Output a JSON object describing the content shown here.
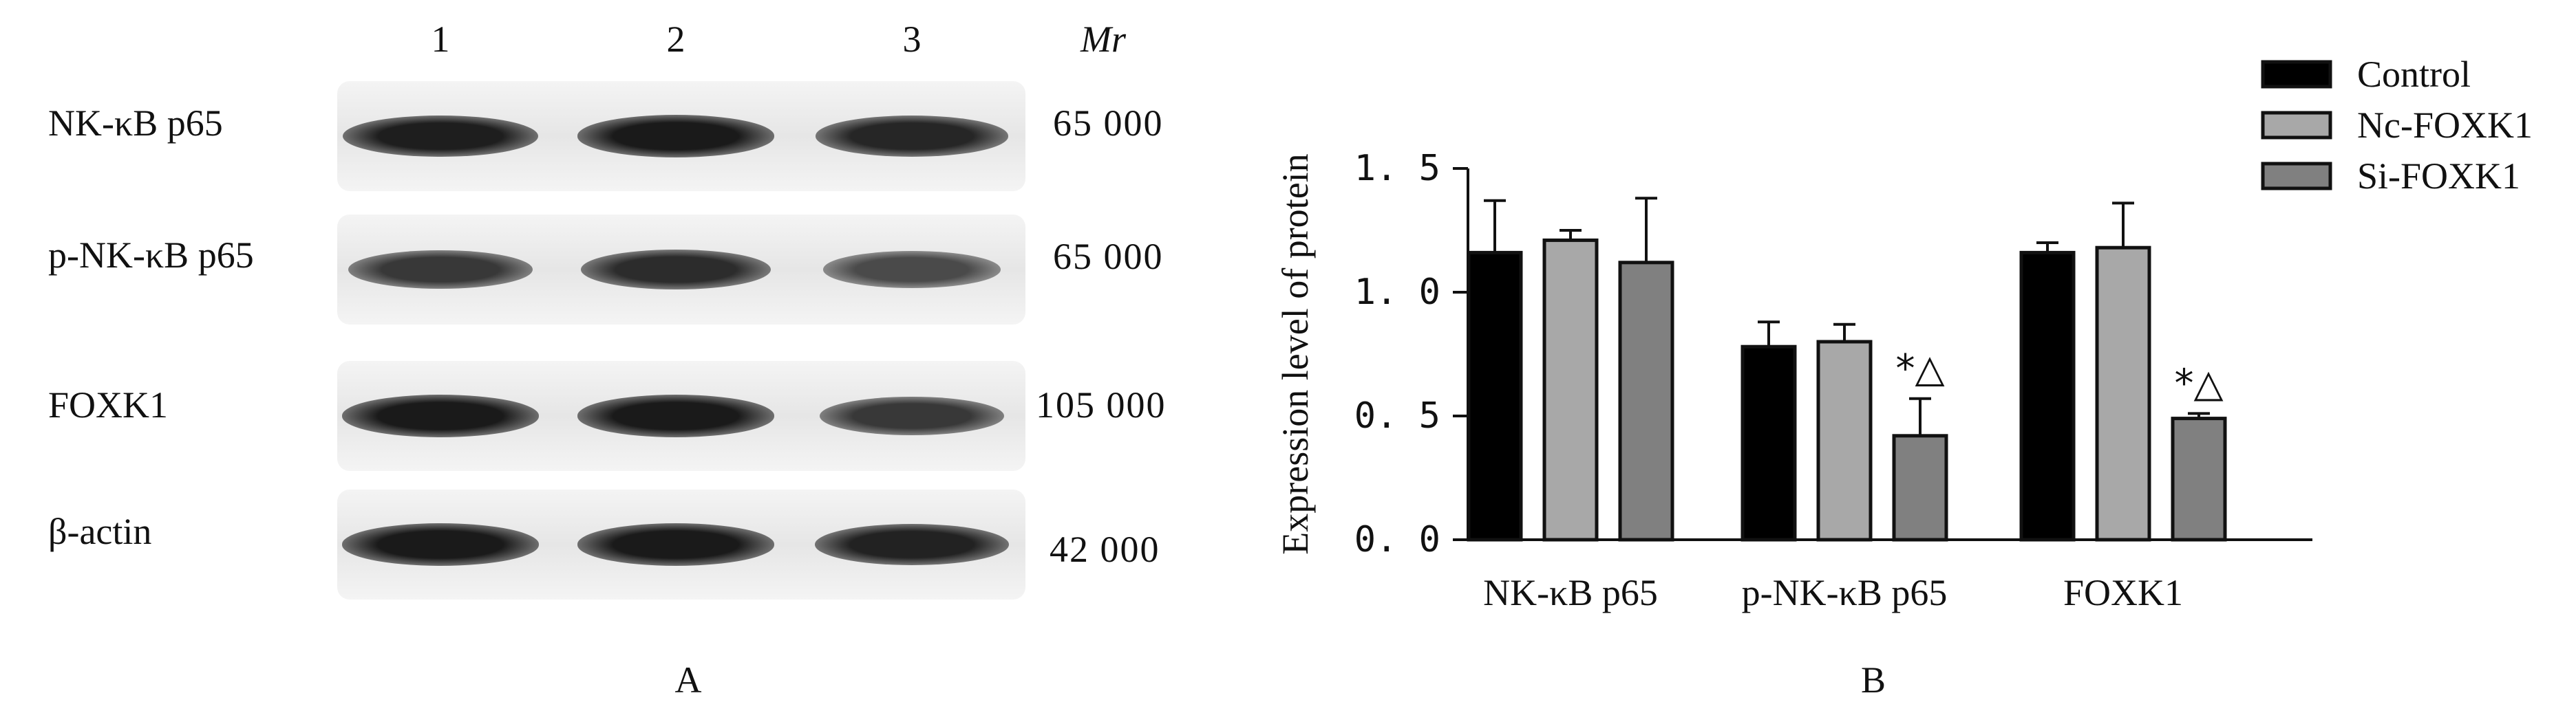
{
  "panel_a": {
    "lane_labels": [
      "1",
      "2",
      "3"
    ],
    "mr_header": "Mr",
    "blots": [
      {
        "protein": "NK-κB p65",
        "mass": "65 000",
        "band_intensity": [
          0.92,
          0.95,
          0.85
        ]
      },
      {
        "protein": "p-NK-κB p65",
        "mass": "65 000",
        "band_intensity": [
          0.7,
          0.8,
          0.55
        ]
      },
      {
        "protein": "FOXK1",
        "mass": "105 000",
        "band_intensity": [
          0.95,
          0.95,
          0.7
        ]
      },
      {
        "protein": "β-actin",
        "mass": "42 000",
        "band_intensity": [
          0.95,
          0.95,
          0.88
        ]
      }
    ],
    "label": "A"
  },
  "panel_b_label": "B",
  "chart_data": {
    "type": "bar",
    "title": "",
    "xlabel": "",
    "ylabel": "Expression level of protein",
    "ylim": [
      0,
      1.5
    ],
    "yticks": [
      0.0,
      0.5,
      1.0,
      1.5
    ],
    "ytick_labels": [
      "0. 0",
      "0. 5",
      "1. 0",
      "1. 5"
    ],
    "categories": [
      "NK-κB p65",
      "p-NK-κB p65",
      "FOXK1"
    ],
    "series": [
      {
        "name": "Control",
        "color": "#000000",
        "values": [
          1.16,
          0.78,
          1.16
        ],
        "errors": [
          0.21,
          0.1,
          0.04
        ]
      },
      {
        "name": "Nc-FOXK1",
        "color": "#a8a8a8",
        "values": [
          1.21,
          0.8,
          1.18
        ],
        "errors": [
          0.04,
          0.07,
          0.18
        ]
      },
      {
        "name": "Si-FOXK1",
        "color": "#808080",
        "values": [
          1.12,
          0.42,
          0.49
        ],
        "errors": [
          0.26,
          0.15,
          0.02
        ]
      }
    ],
    "annotations": [
      {
        "series": 2,
        "category": 1,
        "text": "*△"
      },
      {
        "series": 2,
        "category": 2,
        "text": "*△"
      }
    ],
    "legend_position": "top-right"
  }
}
